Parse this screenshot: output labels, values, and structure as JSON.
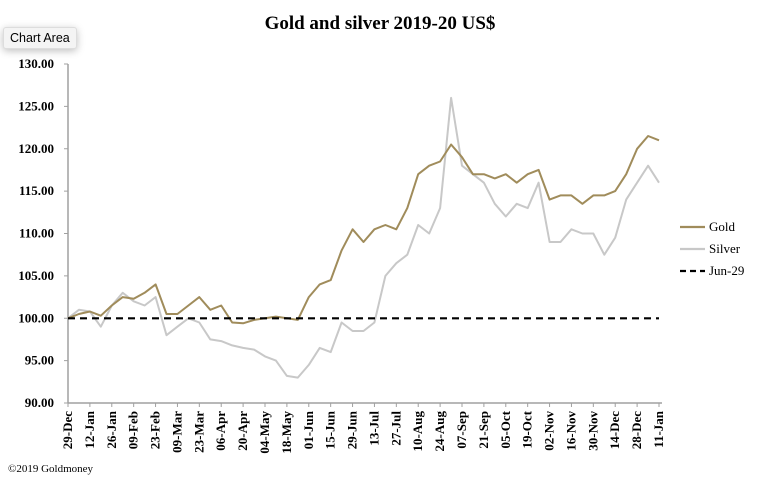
{
  "tooltip": "Chart Area",
  "chart_data": {
    "type": "line",
    "title": "Gold and silver 2019-20  US$",
    "xlabel": "",
    "ylabel": "",
    "ylim": [
      90,
      130
    ],
    "yticks": [
      "90.00",
      "95.00",
      "100.00",
      "105.00",
      "110.00",
      "115.00",
      "120.00",
      "125.00",
      "130.00"
    ],
    "ytick_values": [
      90,
      95,
      100,
      105,
      110,
      115,
      120,
      125,
      130
    ],
    "x_tick_labels": [
      "29-Dec",
      "12-Jan",
      "26-Jan",
      "09-Feb",
      "23-Feb",
      "09-Mar",
      "23-Mar",
      "06-Apr",
      "20-Apr",
      "04-May",
      "18-May",
      "01-Jun",
      "15-Jun",
      "29-Jun",
      "13-Jul",
      "27-Jul",
      "10-Aug",
      "24-Aug",
      "07-Sep",
      "21-Sep",
      "05-Oct",
      "19-Oct",
      "02-Nov",
      "16-Nov",
      "30-Nov",
      "14-Dec",
      "28-Dec",
      "11-Jan"
    ],
    "x_unit": "weeks since 29-Dec",
    "x_range": [
      0,
      54
    ],
    "series": [
      {
        "name": "Gold",
        "color": "#a08c5b",
        "dashed": false,
        "values": [
          100,
          100.5,
          100.8,
          100.3,
          101.5,
          102.5,
          102.3,
          103,
          104,
          100.5,
          100.5,
          101.5,
          102.5,
          101,
          101.5,
          99.5,
          99.4,
          99.8,
          100,
          100.2,
          100,
          99.8,
          102.5,
          104,
          104.5,
          108,
          110.5,
          109,
          110.5,
          111,
          110.5,
          113,
          117,
          118,
          118.5,
          120.5,
          119,
          117,
          117,
          116.5,
          117,
          116,
          117,
          117.5,
          114,
          114.5,
          114.5,
          113.5,
          114.5,
          114.5,
          115,
          117,
          120,
          121.5,
          121
        ]
      },
      {
        "name": "Silver",
        "color": "#c8c8c8",
        "dashed": false,
        "values": [
          100,
          101,
          100.8,
          99,
          101.5,
          103,
          102,
          101.5,
          102.5,
          98,
          99,
          100,
          99.5,
          97.5,
          97.3,
          96.8,
          96.5,
          96.3,
          95.5,
          95,
          93.2,
          93,
          94.5,
          96.5,
          96,
          99.5,
          98.5,
          98.5,
          99.5,
          105,
          106.5,
          107.5,
          111,
          110,
          113,
          126,
          118,
          117,
          116,
          113.5,
          112,
          113.5,
          113,
          116,
          109,
          109,
          110.5,
          110,
          110,
          107.5,
          109.5,
          114,
          116,
          118,
          116
        ]
      },
      {
        "name": "Jun-29",
        "color": "#000000",
        "dashed": true,
        "values": [
          100,
          100,
          100,
          100,
          100,
          100,
          100,
          100,
          100,
          100,
          100,
          100,
          100,
          100,
          100,
          100,
          100,
          100,
          100,
          100,
          100,
          100,
          100,
          100,
          100,
          100,
          100,
          100,
          100,
          100,
          100,
          100,
          100,
          100,
          100,
          100,
          100,
          100,
          100,
          100,
          100,
          100,
          100,
          100,
          100,
          100,
          100,
          100,
          100,
          100,
          100,
          100,
          100,
          100,
          100
        ]
      }
    ],
    "legend_position": "right",
    "grid": false,
    "footnote": "©2019 Goldmoney"
  }
}
